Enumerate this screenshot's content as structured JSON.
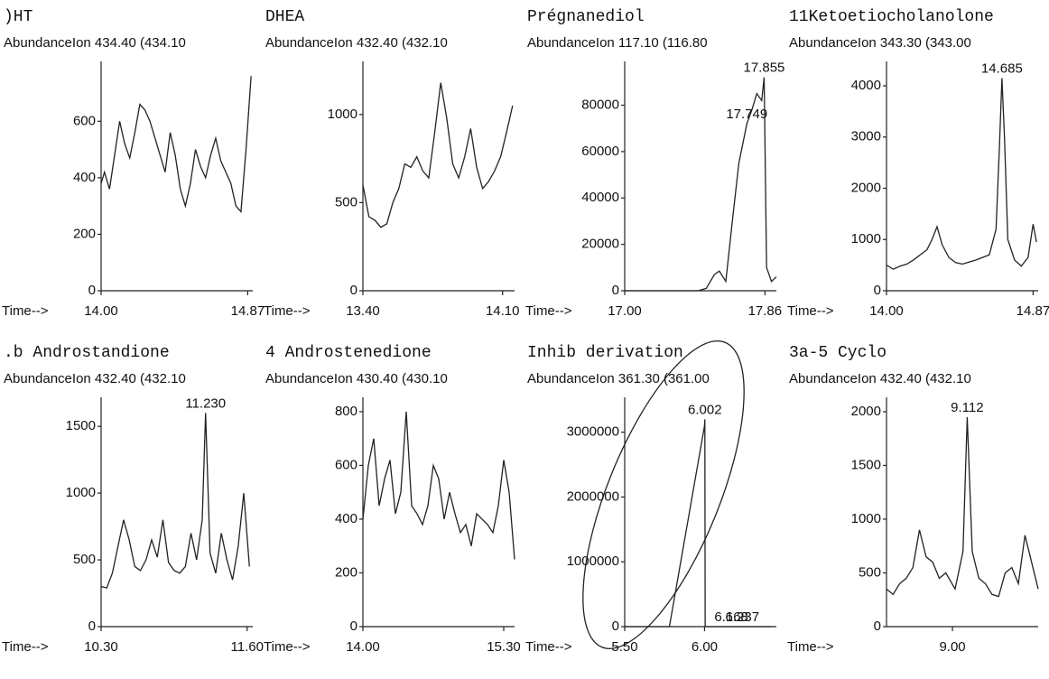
{
  "chart_data": [
    {
      "type": "line",
      "title": ")HT",
      "ylabel": "Abundance",
      "ion": "Ion 434.40 (434.10",
      "xlabel": "Time-->",
      "xlim": [
        14.0,
        14.9
      ],
      "xticks": [
        {
          "value": 14,
          "label": "14.00"
        },
        {
          "value": 14.87,
          "label": "14.87"
        }
      ],
      "ylim": [
        0,
        780
      ],
      "yticks": [
        0,
        200,
        400,
        600
      ],
      "x": [
        14.0,
        14.02,
        14.05,
        14.08,
        14.11,
        14.14,
        14.17,
        14.2,
        14.23,
        14.26,
        14.29,
        14.32,
        14.35,
        14.38,
        14.41,
        14.44,
        14.47,
        14.5,
        14.53,
        14.56,
        14.59,
        14.62,
        14.65,
        14.68,
        14.71,
        14.74,
        14.77,
        14.8,
        14.83,
        14.86,
        14.89
      ],
      "values": [
        380,
        420,
        360,
        480,
        600,
        520,
        470,
        560,
        660,
        640,
        600,
        540,
        480,
        420,
        560,
        480,
        360,
        300,
        380,
        500,
        440,
        400,
        480,
        540,
        460,
        420,
        380,
        300,
        280,
        500,
        760
      ],
      "annotations": []
    },
    {
      "type": "line",
      "title": "DHEA",
      "ylabel": "Abundance",
      "ion": "Ion 432.40 (432.10",
      "xlabel": "Time-->",
      "xlim": [
        13.4,
        14.16
      ],
      "xticks": [
        {
          "value": 13.4,
          "label": "13.40"
        },
        {
          "value": 14.1,
          "label": "14.10"
        }
      ],
      "ylim": [
        0,
        1250
      ],
      "yticks": [
        0,
        500,
        1000
      ],
      "x": [
        13.4,
        13.43,
        13.46,
        13.49,
        13.52,
        13.55,
        13.58,
        13.61,
        13.64,
        13.67,
        13.7,
        13.73,
        13.76,
        13.79,
        13.82,
        13.85,
        13.88,
        13.91,
        13.94,
        13.97,
        14.0,
        14.03,
        14.06,
        14.09,
        14.12,
        14.15
      ],
      "values": [
        600,
        420,
        400,
        360,
        380,
        500,
        580,
        720,
        700,
        760,
        680,
        640,
        900,
        1180,
        980,
        720,
        640,
        760,
        920,
        700,
        580,
        620,
        680,
        760,
        900,
        1050
      ],
      "annotations": []
    },
    {
      "type": "line",
      "title": "Prégnanediol",
      "ylabel": "Abundance",
      "ion": "Ion 117.10 (116.80",
      "xlabel": "Time-->",
      "xlim": [
        17.0,
        17.93
      ],
      "xticks": [
        {
          "value": 17,
          "label": "17.00"
        },
        {
          "value": 17.86,
          "label": "17.86"
        }
      ],
      "ylim": [
        0,
        95000
      ],
      "yticks": [
        0,
        20000,
        40000,
        60000,
        80000
      ],
      "x": [
        17.0,
        17.05,
        17.1,
        17.15,
        17.2,
        17.25,
        17.3,
        17.35,
        17.4,
        17.45,
        17.5,
        17.55,
        17.58,
        17.62,
        17.66,
        17.7,
        17.749,
        17.78,
        17.81,
        17.84,
        17.855,
        17.87,
        17.9,
        17.93
      ],
      "values": [
        0,
        0,
        0,
        0,
        0,
        0,
        0,
        0,
        0,
        0,
        1000,
        7000,
        8500,
        4000,
        30000,
        55000,
        72000,
        78000,
        85000,
        82000,
        92000,
        10000,
        4000,
        6000
      ],
      "annotations": [
        {
          "text": "17.855",
          "x": 17.855,
          "y": 92000
        },
        {
          "text": "17.749",
          "x": 17.749,
          "y": 72000
        }
      ]
    },
    {
      "type": "line",
      "title": "11Ketoetiocholanolone",
      "ylabel": "Abundance",
      "ion": "Ion 343.30 (343.00",
      "xlabel": "Time-->",
      "xlim": [
        14.0,
        14.9
      ],
      "xticks": [
        {
          "value": 14,
          "label": "14.00"
        },
        {
          "value": 14.87,
          "label": "14.87"
        }
      ],
      "ylim": [
        0,
        4300
      ],
      "yticks": [
        0,
        1000,
        2000,
        3000,
        4000
      ],
      "x": [
        14.0,
        14.04,
        14.08,
        14.12,
        14.16,
        14.2,
        14.24,
        14.27,
        14.3,
        14.33,
        14.37,
        14.41,
        14.45,
        14.49,
        14.53,
        14.57,
        14.61,
        14.65,
        14.67,
        14.685,
        14.7,
        14.72,
        14.76,
        14.8,
        14.84,
        14.87,
        14.89
      ],
      "values": [
        500,
        420,
        480,
        520,
        600,
        700,
        800,
        1000,
        1250,
        900,
        650,
        550,
        520,
        560,
        600,
        650,
        700,
        1200,
        2800,
        4150,
        3000,
        1000,
        600,
        480,
        650,
        1300,
        950
      ],
      "annotations": [
        {
          "text": "14.685",
          "x": 14.685,
          "y": 4150
        }
      ]
    },
    {
      "type": "line",
      "title": ".b Androstandione",
      "ylabel": "Abundance",
      "ion": "Ion 432.40 (432.10",
      "xlabel": "Time-->",
      "xlim": [
        10.3,
        11.65
      ],
      "xticks": [
        {
          "value": 10.3,
          "label": "10.30"
        },
        {
          "value": 11.6,
          "label": "11.60"
        }
      ],
      "ylim": [
        0,
        1650
      ],
      "yticks": [
        0,
        500,
        1000,
        1500
      ],
      "x": [
        10.3,
        10.35,
        10.4,
        10.45,
        10.5,
        10.55,
        10.6,
        10.65,
        10.7,
        10.75,
        10.8,
        10.85,
        10.9,
        10.95,
        11.0,
        11.05,
        11.1,
        11.15,
        11.2,
        11.23,
        11.27,
        11.32,
        11.37,
        11.42,
        11.47,
        11.52,
        11.57,
        11.62
      ],
      "values": [
        300,
        290,
        400,
        600,
        800,
        650,
        450,
        420,
        500,
        650,
        520,
        800,
        480,
        420,
        400,
        450,
        700,
        500,
        800,
        1600,
        550,
        400,
        700,
        500,
        350,
        600,
        1000,
        450
      ],
      "annotations": [
        {
          "text": "11.230",
          "x": 11.23,
          "y": 1600
        }
      ]
    },
    {
      "type": "line",
      "title": "4 Androstenedione",
      "ylabel": "Abundance",
      "ion": "Ion 430.40 (430.10",
      "xlabel": "Time-->",
      "xlim": [
        14.0,
        15.4
      ],
      "xticks": [
        {
          "value": 14,
          "label": "14.00"
        },
        {
          "value": 15.3,
          "label": "15.30"
        }
      ],
      "ylim": [
        0,
        820
      ],
      "yticks": [
        0,
        200,
        400,
        600,
        800
      ],
      "x": [
        14.0,
        14.05,
        14.1,
        14.15,
        14.2,
        14.25,
        14.3,
        14.35,
        14.4,
        14.45,
        14.5,
        14.55,
        14.6,
        14.65,
        14.7,
        14.75,
        14.8,
        14.85,
        14.9,
        14.95,
        15.0,
        15.05,
        15.1,
        15.15,
        15.2,
        15.25,
        15.3,
        15.35,
        15.4
      ],
      "values": [
        400,
        600,
        700,
        450,
        550,
        620,
        420,
        500,
        800,
        450,
        420,
        380,
        450,
        600,
        550,
        400,
        500,
        420,
        350,
        380,
        300,
        420,
        400,
        380,
        350,
        450,
        620,
        500,
        250
      ],
      "annotations": []
    },
    {
      "type": "line",
      "title": "Inhib derivation",
      "ylabel": "Abundance",
      "ion": "Ion 361.30 (361.00",
      "xlabel": "Time-->",
      "xlim": [
        5.5,
        6.45
      ],
      "xticks": [
        {
          "value": 5.5,
          "label": "5.50"
        },
        {
          "value": 6,
          "label": "6.00"
        }
      ],
      "ylim": [
        0,
        3400000
      ],
      "yticks": [
        0,
        1000000,
        2000000,
        3000000
      ],
      "x": [
        5.5,
        5.6,
        5.7,
        5.78,
        6.0,
        6.002,
        6.004,
        6.1,
        6.2,
        6.3,
        6.42
      ],
      "values": [
        0,
        0,
        0,
        0,
        3100000,
        3200000,
        0,
        0,
        0,
        0,
        0
      ],
      "annotations": [
        {
          "text": "6.002",
          "x": 6.002,
          "y": 3200000
        },
        {
          "text": "6.168",
          "x": 6.168,
          "y": 0
        },
        {
          "text": "6.237",
          "x": 6.237,
          "y": 0
        }
      ]
    },
    {
      "type": "line",
      "title": "3a-5 Cyclo",
      "ylabel": "Abundance",
      "ion": "Ion 432.40 (432.10",
      "xlabel": "Time-->",
      "xlim": [
        8.5,
        9.65
      ],
      "xticks": [
        {
          "value": 9,
          "label": "9.00"
        }
      ],
      "ylim": [
        0,
        2050
      ],
      "yticks": [
        0,
        500,
        1000,
        1500,
        2000
      ],
      "x": [
        8.5,
        8.55,
        8.6,
        8.65,
        8.7,
        8.75,
        8.8,
        8.85,
        8.9,
        8.95,
        9.02,
        9.08,
        9.112,
        9.15,
        9.2,
        9.25,
        9.3,
        9.35,
        9.4,
        9.45,
        9.5,
        9.55,
        9.6,
        9.65
      ],
      "values": [
        350,
        300,
        400,
        450,
        550,
        900,
        650,
        600,
        450,
        500,
        350,
        700,
        1950,
        700,
        450,
        400,
        300,
        280,
        500,
        550,
        400,
        850,
        600,
        350
      ],
      "annotations": [
        {
          "text": "9.112",
          "x": 9.112,
          "y": 1950
        }
      ]
    }
  ]
}
